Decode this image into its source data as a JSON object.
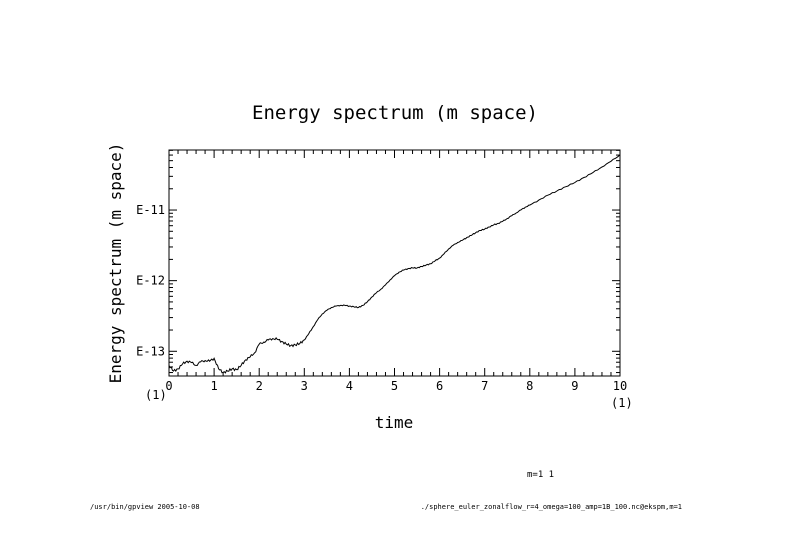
{
  "chart_data": {
    "type": "line",
    "title": "Energy spectrum (m space)",
    "xlabel": "time",
    "ylabel": "Energy spectrum (m space)",
    "x_scale_note_left": "(1)",
    "x_scale_note_right": "(1)",
    "xlim": [
      0,
      10
    ],
    "ylim_log10": [
      -13.35,
      -10.15
    ],
    "y_scale": "log",
    "x_ticks": [
      "0",
      "1",
      "2",
      "3",
      "4",
      "5",
      "6",
      "7",
      "8",
      "9",
      "10"
    ],
    "y_ticks": [
      {
        "label": "E-13",
        "log10": -13
      },
      {
        "label": "E-12",
        "log10": -12
      },
      {
        "label": "E-11",
        "log10": -11
      }
    ],
    "series": [
      {
        "x": [
          0,
          0.1,
          0.2,
          0.3,
          0.4,
          0.5,
          0.6,
          0.7,
          0.8,
          0.9,
          1.0,
          1.1,
          1.2,
          1.3,
          1.4,
          1.5,
          1.6,
          1.7,
          1.8,
          1.9,
          2.0,
          2.1,
          2.2,
          2.3,
          2.4,
          2.5,
          2.6,
          2.7,
          2.8,
          2.9,
          3.0,
          3.1,
          3.2,
          3.3,
          3.4,
          3.5,
          3.6,
          3.7,
          3.8,
          3.9,
          4.0,
          4.1,
          4.2,
          4.3,
          4.4,
          4.5,
          4.6,
          4.7,
          4.8,
          4.9,
          5.0,
          5.1,
          5.2,
          5.3,
          5.4,
          5.5,
          5.6,
          5.7,
          5.8,
          5.9,
          6.0,
          6.1,
          6.2,
          6.3,
          6.4,
          6.5,
          6.6,
          6.7,
          6.8,
          6.9,
          7.0,
          7.1,
          7.2,
          7.3,
          7.4,
          7.5,
          7.6,
          7.7,
          7.8,
          7.9,
          8.0,
          8.2,
          8.4,
          8.6,
          8.8,
          9.0,
          9.2,
          9.4,
          9.6,
          9.8,
          10.0
        ],
        "log10": [
          -13.2,
          -13.28,
          -13.25,
          -13.18,
          -13.14,
          -13.16,
          -13.2,
          -13.15,
          -13.13,
          -13.14,
          -13.1,
          -13.25,
          -13.3,
          -13.28,
          -13.25,
          -13.26,
          -13.2,
          -13.12,
          -13.08,
          -13.02,
          -12.9,
          -12.87,
          -12.84,
          -12.82,
          -12.83,
          -12.86,
          -12.9,
          -12.92,
          -12.91,
          -12.89,
          -12.84,
          -12.75,
          -12.65,
          -12.55,
          -12.47,
          -12.42,
          -12.38,
          -12.36,
          -12.35,
          -12.35,
          -12.36,
          -12.37,
          -12.38,
          -12.35,
          -12.3,
          -12.23,
          -12.17,
          -12.12,
          -12.06,
          -11.99,
          -11.93,
          -11.88,
          -11.85,
          -11.83,
          -11.82,
          -11.82,
          -11.8,
          -11.78,
          -11.76,
          -11.72,
          -11.68,
          -11.62,
          -11.55,
          -11.5,
          -11.46,
          -11.43,
          -11.39,
          -11.36,
          -11.32,
          -11.29,
          -11.27,
          -11.24,
          -11.21,
          -11.19,
          -11.16,
          -11.12,
          -11.08,
          -11.04,
          -11.0,
          -10.96,
          -10.93,
          -10.86,
          -10.79,
          -10.73,
          -10.67,
          -10.61,
          -10.54,
          -10.47,
          -10.39,
          -10.31,
          -10.22
        ]
      }
    ],
    "grid": false,
    "annotation": "m=1 1"
  },
  "footer": {
    "left": "/usr/bin/gpview  2005-10-08",
    "right": "./sphere_euler_zonalflow_r=4_omega=100_amp=1B_100.nc@ekspm,m=1"
  }
}
